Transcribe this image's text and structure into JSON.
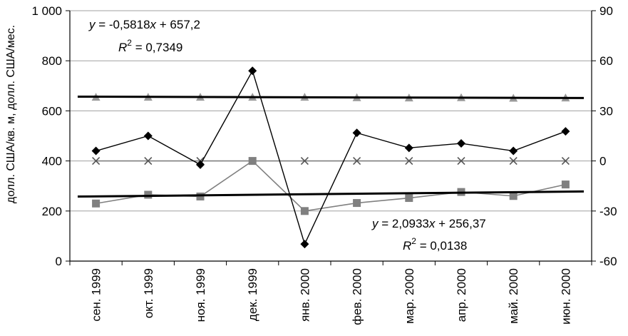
{
  "chart_data": {
    "type": "line",
    "ylabel": "долл. США/кв. м, долл. США/мес.",
    "categories": [
      "сен. 1999",
      "окт. 1999",
      "ноя. 1999",
      "дек. 1999",
      "янв. 2000",
      "фев. 2000",
      "мар. 2000",
      "апр. 2000",
      "май. 2000",
      "июн. 2000"
    ],
    "y_left": {
      "min": 0,
      "max": 1000,
      "ticks": [
        "0",
        "200",
        "400",
        "600",
        "800",
        "1 000"
      ],
      "tick_values": [
        0,
        200,
        400,
        600,
        800,
        1000
      ]
    },
    "y_right": {
      "min": -60,
      "max": 90,
      "ticks": [
        "-60",
        "-30",
        "0",
        "30",
        "60",
        "90"
      ],
      "tick_values": [
        -60,
        -30,
        0,
        30,
        60,
        90
      ]
    },
    "grid": true,
    "colors": {
      "diamond": "#000000",
      "square": "#808080",
      "triangle": "#999999",
      "cross": "#808080",
      "trend": "#000000"
    },
    "series": [
      {
        "marker": "diamond",
        "axis": "left",
        "values": [
          440,
          500,
          385,
          760,
          68,
          512,
          452,
          470,
          440,
          518
        ]
      },
      {
        "marker": "square",
        "axis": "left",
        "values": [
          230,
          265,
          258,
          400,
          200,
          232,
          252,
          276,
          260,
          306
        ]
      },
      {
        "marker": "triangle",
        "axis": "left",
        "values": [
          655,
          655,
          655,
          655,
          655,
          653,
          652,
          653,
          651,
          652
        ]
      },
      {
        "marker": "cross",
        "axis": "right",
        "values": [
          0,
          0,
          0,
          0,
          0,
          0,
          0,
          0,
          0,
          0
        ]
      }
    ],
    "trendlines": [
      {
        "slope": -0.5818,
        "intercept": 657.2,
        "eq_parts": [
          "y",
          " = -0,5818",
          "x",
          " + 657,2"
        ],
        "r2_label": "R",
        "r2_sup": "2",
        "r2_value": " = 0,7349"
      },
      {
        "slope": 2.0933,
        "intercept": 256.37,
        "eq_parts": [
          "y",
          " = 2,0933",
          "x",
          " + 256,37"
        ],
        "r2_label": "R",
        "r2_sup": "2",
        "r2_value": " = 0,0138"
      }
    ]
  }
}
